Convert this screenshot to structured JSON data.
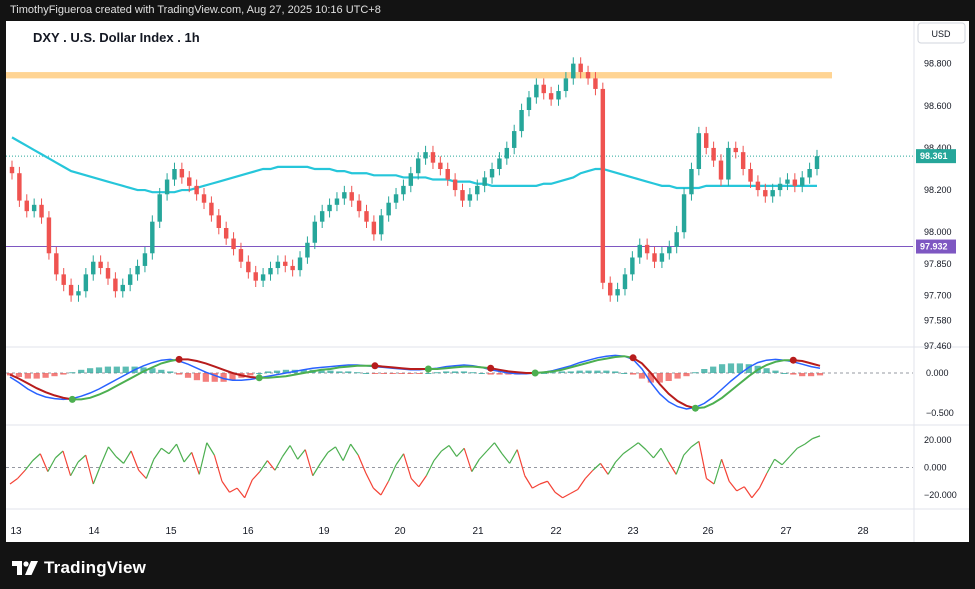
{
  "header": {
    "attribution": "TimothyFigueroa created with TradingView.com, Aug 27, 2025 10:16 UTC+8"
  },
  "footer": {
    "brand": "TradingView"
  },
  "colors": {
    "up": "#26a69a",
    "down": "#ef5350",
    "ma": "#26c6da",
    "zone": "#ffcc80",
    "level_line": "#7e57c2",
    "price_tag": "#26a69a",
    "macd_fast": "#2962ff",
    "macd_slow_up": "#4caf50",
    "macd_slow_down": "#b71c1c",
    "hist_up": "#26a69a",
    "hist_down": "#ef5350",
    "osc_up": "#4caf50",
    "osc_down": "#f44336"
  },
  "chart_data": [
    {
      "type": "candlestick",
      "title": "DXY . U.S. Dollar Index . 1h",
      "currency": "USD",
      "ylim": [
        97.46,
        98.86
      ],
      "y_ticks": [
        "98.800",
        "98.600",
        "98.400",
        "98.200",
        "98.000",
        "97.850",
        "97.700",
        "97.580",
        "97.460"
      ],
      "x_ticks": [
        "13",
        "14",
        "15",
        "16",
        "19",
        "20",
        "21",
        "22",
        "23",
        "26",
        "27",
        "28"
      ],
      "current_price": 98.361,
      "current_price_label": "98.361",
      "level": 97.932,
      "level_label": "97.932",
      "resistance_zone": [
        98.73,
        98.76
      ],
      "ohlc_closes": [
        98.28,
        98.15,
        98.1,
        98.13,
        98.07,
        97.9,
        97.8,
        97.75,
        97.7,
        97.72,
        97.8,
        97.86,
        97.83,
        97.78,
        97.72,
        97.75,
        97.8,
        97.84,
        97.9,
        98.05,
        98.18,
        98.25,
        98.3,
        98.26,
        98.22,
        98.18,
        98.14,
        98.08,
        98.02,
        97.97,
        97.92,
        97.86,
        97.81,
        97.77,
        97.8,
        97.83,
        97.86,
        97.84,
        97.82,
        97.88,
        97.95,
        98.05,
        98.1,
        98.13,
        98.16,
        98.19,
        98.15,
        98.1,
        98.05,
        97.99,
        98.08,
        98.14,
        98.18,
        98.22,
        98.28,
        98.35,
        98.38,
        98.33,
        98.3,
        98.25,
        98.2,
        98.15,
        98.18,
        98.22,
        98.26,
        98.3,
        98.35,
        98.4,
        98.48,
        98.58,
        98.64,
        98.7,
        98.66,
        98.63,
        98.67,
        98.73,
        98.8,
        98.76,
        98.73,
        98.68,
        97.76,
        97.7,
        97.73,
        97.8,
        97.88,
        97.94,
        97.9,
        97.86,
        97.9,
        97.93,
        98.0,
        98.18,
        98.3,
        98.47,
        98.4,
        98.34,
        98.25,
        98.4,
        98.38,
        98.3,
        98.24,
        98.2,
        98.17,
        98.2,
        98.23,
        98.25,
        98.22,
        98.26,
        98.3,
        98.361
      ],
      "moving_average_closes": [
        98.45,
        98.43,
        98.41,
        98.39,
        98.37,
        98.35,
        98.33,
        98.31,
        98.29,
        98.28,
        98.27,
        98.26,
        98.25,
        98.24,
        98.23,
        98.22,
        98.21,
        98.2,
        98.2,
        98.19,
        98.19,
        98.19,
        98.19,
        98.2,
        98.2,
        98.21,
        98.22,
        98.23,
        98.24,
        98.25,
        98.26,
        98.27,
        98.28,
        98.29,
        98.3,
        98.3,
        98.31,
        98.31,
        98.31,
        98.31,
        98.31,
        98.3,
        98.3,
        98.3,
        98.29,
        98.29,
        98.28,
        98.28,
        98.28,
        98.27,
        98.27,
        98.27,
        98.27,
        98.26,
        98.26,
        98.26,
        98.26,
        98.25,
        98.25,
        98.25,
        98.24,
        98.24,
        98.24,
        98.23,
        98.23,
        98.22,
        98.22,
        98.22,
        98.22,
        98.22,
        98.22,
        98.22,
        98.23,
        98.23,
        98.24,
        98.25,
        98.26,
        98.28,
        98.29,
        98.3,
        98.3,
        98.29,
        98.28,
        98.27,
        98.26,
        98.25,
        98.24,
        98.23,
        98.22,
        98.22,
        98.21,
        98.21,
        98.21,
        98.21,
        98.22,
        98.22,
        98.22,
        98.22,
        98.22,
        98.22,
        98.22,
        98.22,
        98.22,
        98.22,
        98.22,
        98.22,
        98.22,
        98.22,
        98.22,
        98.22
      ]
    },
    {
      "type": "macd",
      "ylim": [
        -0.6,
        0.3
      ],
      "y_ticks": [
        "0.000",
        "−0.500"
      ],
      "zero_line": 0,
      "fast": [
        -0.05,
        -0.12,
        -0.2,
        -0.26,
        -0.3,
        -0.32,
        -0.33,
        -0.32,
        -0.29,
        -0.25,
        -0.2,
        -0.14,
        -0.08,
        -0.02,
        0.04,
        0.09,
        0.13,
        0.16,
        0.17,
        0.15,
        0.11,
        0.06,
        0.01,
        -0.03,
        -0.07,
        -0.09,
        -0.09,
        -0.08,
        -0.06,
        -0.04,
        -0.02,
        0.0,
        0.02,
        0.04,
        0.06,
        0.07,
        0.08,
        0.09,
        0.1,
        0.1,
        0.09,
        0.08,
        0.07,
        0.06,
        0.05,
        0.04,
        0.04,
        0.05,
        0.06,
        0.08,
        0.09,
        0.1,
        0.09,
        0.07,
        0.04,
        0.02,
        0.0,
        -0.01,
        -0.01,
        0.0,
        0.01,
        0.03,
        0.06,
        0.09,
        0.13,
        0.16,
        0.19,
        0.21,
        0.22,
        0.21,
        0.17,
        0.05,
        -0.12,
        -0.26,
        -0.36,
        -0.42,
        -0.45,
        -0.43,
        -0.38,
        -0.3,
        -0.2,
        -0.1,
        -0.01,
        0.07,
        0.13,
        0.16,
        0.17,
        0.16,
        0.14,
        0.11,
        0.08,
        0.06
      ],
      "slow": [
        -0.02,
        -0.07,
        -0.13,
        -0.19,
        -0.24,
        -0.28,
        -0.31,
        -0.33,
        -0.33,
        -0.31,
        -0.27,
        -0.22,
        -0.16,
        -0.1,
        -0.04,
        0.02,
        0.07,
        0.12,
        0.15,
        0.17,
        0.17,
        0.15,
        0.12,
        0.08,
        0.04,
        0.0,
        -0.03,
        -0.05,
        -0.06,
        -0.06,
        -0.05,
        -0.04,
        -0.02,
        0.0,
        0.02,
        0.04,
        0.05,
        0.07,
        0.08,
        0.09,
        0.09,
        0.09,
        0.08,
        0.07,
        0.06,
        0.05,
        0.05,
        0.05,
        0.05,
        0.06,
        0.07,
        0.08,
        0.08,
        0.07,
        0.06,
        0.04,
        0.02,
        0.01,
        0.0,
        0.0,
        0.01,
        0.02,
        0.04,
        0.07,
        0.1,
        0.13,
        0.16,
        0.18,
        0.2,
        0.21,
        0.19,
        0.12,
        0.0,
        -0.14,
        -0.26,
        -0.35,
        -0.41,
        -0.44,
        -0.43,
        -0.38,
        -0.31,
        -0.22,
        -0.13,
        -0.04,
        0.04,
        0.1,
        0.14,
        0.16,
        0.16,
        0.15,
        0.12,
        0.09
      ],
      "histogram": [
        -0.03,
        -0.05,
        -0.07,
        -0.07,
        -0.06,
        -0.04,
        -0.02,
        0.01,
        0.04,
        0.06,
        0.07,
        0.08,
        0.08,
        0.08,
        0.08,
        0.07,
        0.06,
        0.04,
        0.02,
        -0.02,
        -0.06,
        -0.09,
        -0.11,
        -0.11,
        -0.11,
        -0.09,
        -0.06,
        -0.03,
        0.0,
        0.02,
        0.03,
        0.04,
        0.04,
        0.04,
        0.04,
        0.03,
        0.03,
        0.02,
        0.02,
        0.01,
        0.0,
        -0.01,
        -0.01,
        -0.01,
        -0.01,
        -0.01,
        -0.01,
        0.0,
        0.01,
        0.02,
        0.02,
        0.02,
        0.01,
        0.0,
        -0.02,
        -0.02,
        -0.02,
        -0.02,
        -0.01,
        0.0,
        0.0,
        0.01,
        0.02,
        0.02,
        0.03,
        0.03,
        0.03,
        0.03,
        0.02,
        0.0,
        -0.02,
        -0.07,
        -0.12,
        -0.12,
        -0.1,
        -0.07,
        -0.04,
        0.01,
        0.05,
        0.08,
        0.11,
        0.12,
        0.12,
        0.11,
        0.09,
        0.06,
        0.03,
        0.0,
        -0.02,
        -0.04,
        -0.04,
        -0.03
      ]
    },
    {
      "type": "line",
      "ylim": [
        -28,
        28
      ],
      "y_ticks": [
        "20.000",
        "0.000",
        "−20.000"
      ],
      "zero_line": 0,
      "values": [
        -12,
        -8,
        -2,
        5,
        10,
        -3,
        7,
        12,
        -6,
        4,
        9,
        -12,
        2,
        15,
        8,
        3,
        12,
        -2,
        -8,
        6,
        14,
        10,
        17,
        4,
        11,
        -5,
        18,
        9,
        -10,
        -18,
        -15,
        -22,
        -9,
        -3,
        5,
        -2,
        8,
        16,
        6,
        13,
        -6,
        3,
        11,
        15,
        5,
        17,
        9,
        -4,
        -15,
        -20,
        -10,
        2,
        10,
        -8,
        -14,
        -6,
        5,
        12,
        16,
        8,
        14,
        -3,
        6,
        12,
        18,
        10,
        3,
        13,
        -6,
        -15,
        -12,
        -10,
        -18,
        -22,
        -19,
        -16,
        -8,
        -2,
        3,
        -5,
        4,
        10,
        14,
        18,
        13,
        7,
        14,
        4,
        -5,
        9,
        15,
        19,
        -8,
        -12,
        6,
        -10,
        -17,
        -14,
        -22,
        -15,
        -4,
        6,
        2,
        8,
        14,
        17,
        21,
        23
      ]
    }
  ]
}
